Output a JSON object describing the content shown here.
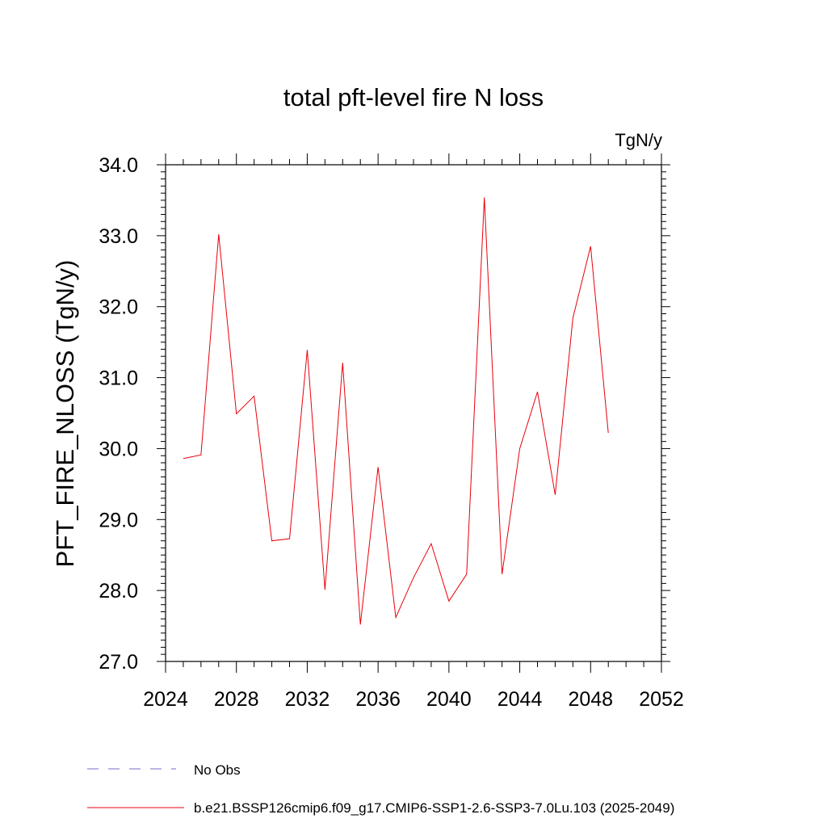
{
  "chart_data": {
    "type": "line",
    "title": "total pft-level fire N loss",
    "units_label": "TgN/y",
    "ylabel": "PFT_FIRE_NLOSS  (TgN/y)",
    "xlabel": "",
    "xlim": [
      2024,
      2052
    ],
    "ylim": [
      27.0,
      34.0
    ],
    "x_ticks": [
      2024,
      2028,
      2032,
      2036,
      2040,
      2044,
      2048,
      2052
    ],
    "x_tick_labels": [
      "2024",
      "2028",
      "2032",
      "2036",
      "2040",
      "2044",
      "2048",
      "2052"
    ],
    "y_ticks": [
      27.0,
      28.0,
      29.0,
      30.0,
      31.0,
      32.0,
      33.0,
      34.0
    ],
    "y_tick_labels": [
      "27.0",
      "28.0",
      "29.0",
      "30.0",
      "31.0",
      "32.0",
      "33.0",
      "34.0"
    ],
    "grid": false,
    "legend_position": "bottom",
    "series": [
      {
        "name": "b.e21.BSSP126cmip6.f09_g17.CMIP6-SSP1-2.6-SSP3-7.0Lu.103 (2025-2049)",
        "color": "#e8000b",
        "x": [
          2025,
          2026,
          2027,
          2028,
          2029,
          2030,
          2031,
          2032,
          2033,
          2034,
          2035,
          2036,
          2037,
          2038,
          2039,
          2040,
          2041,
          2042,
          2043,
          2044,
          2045,
          2046,
          2047,
          2048,
          2049
        ],
        "values": [
          29.86,
          29.91,
          33.02,
          30.49,
          30.74,
          28.7,
          28.73,
          31.39,
          28.01,
          31.21,
          27.52,
          29.74,
          27.62,
          28.18,
          28.66,
          27.85,
          28.23,
          33.54,
          28.23,
          30.0,
          30.8,
          29.35,
          31.84,
          32.85,
          30.22
        ]
      }
    ],
    "legend": [
      {
        "label": "No Obs",
        "style": "dashed",
        "color": "#7b68c8"
      },
      {
        "label": "b.e21.BSSP126cmip6.f09_g17.CMIP6-SSP1-2.6-SSP3-7.0Lu.103 (2025-2049)",
        "style": "solid",
        "color": "#e8000b"
      }
    ]
  }
}
